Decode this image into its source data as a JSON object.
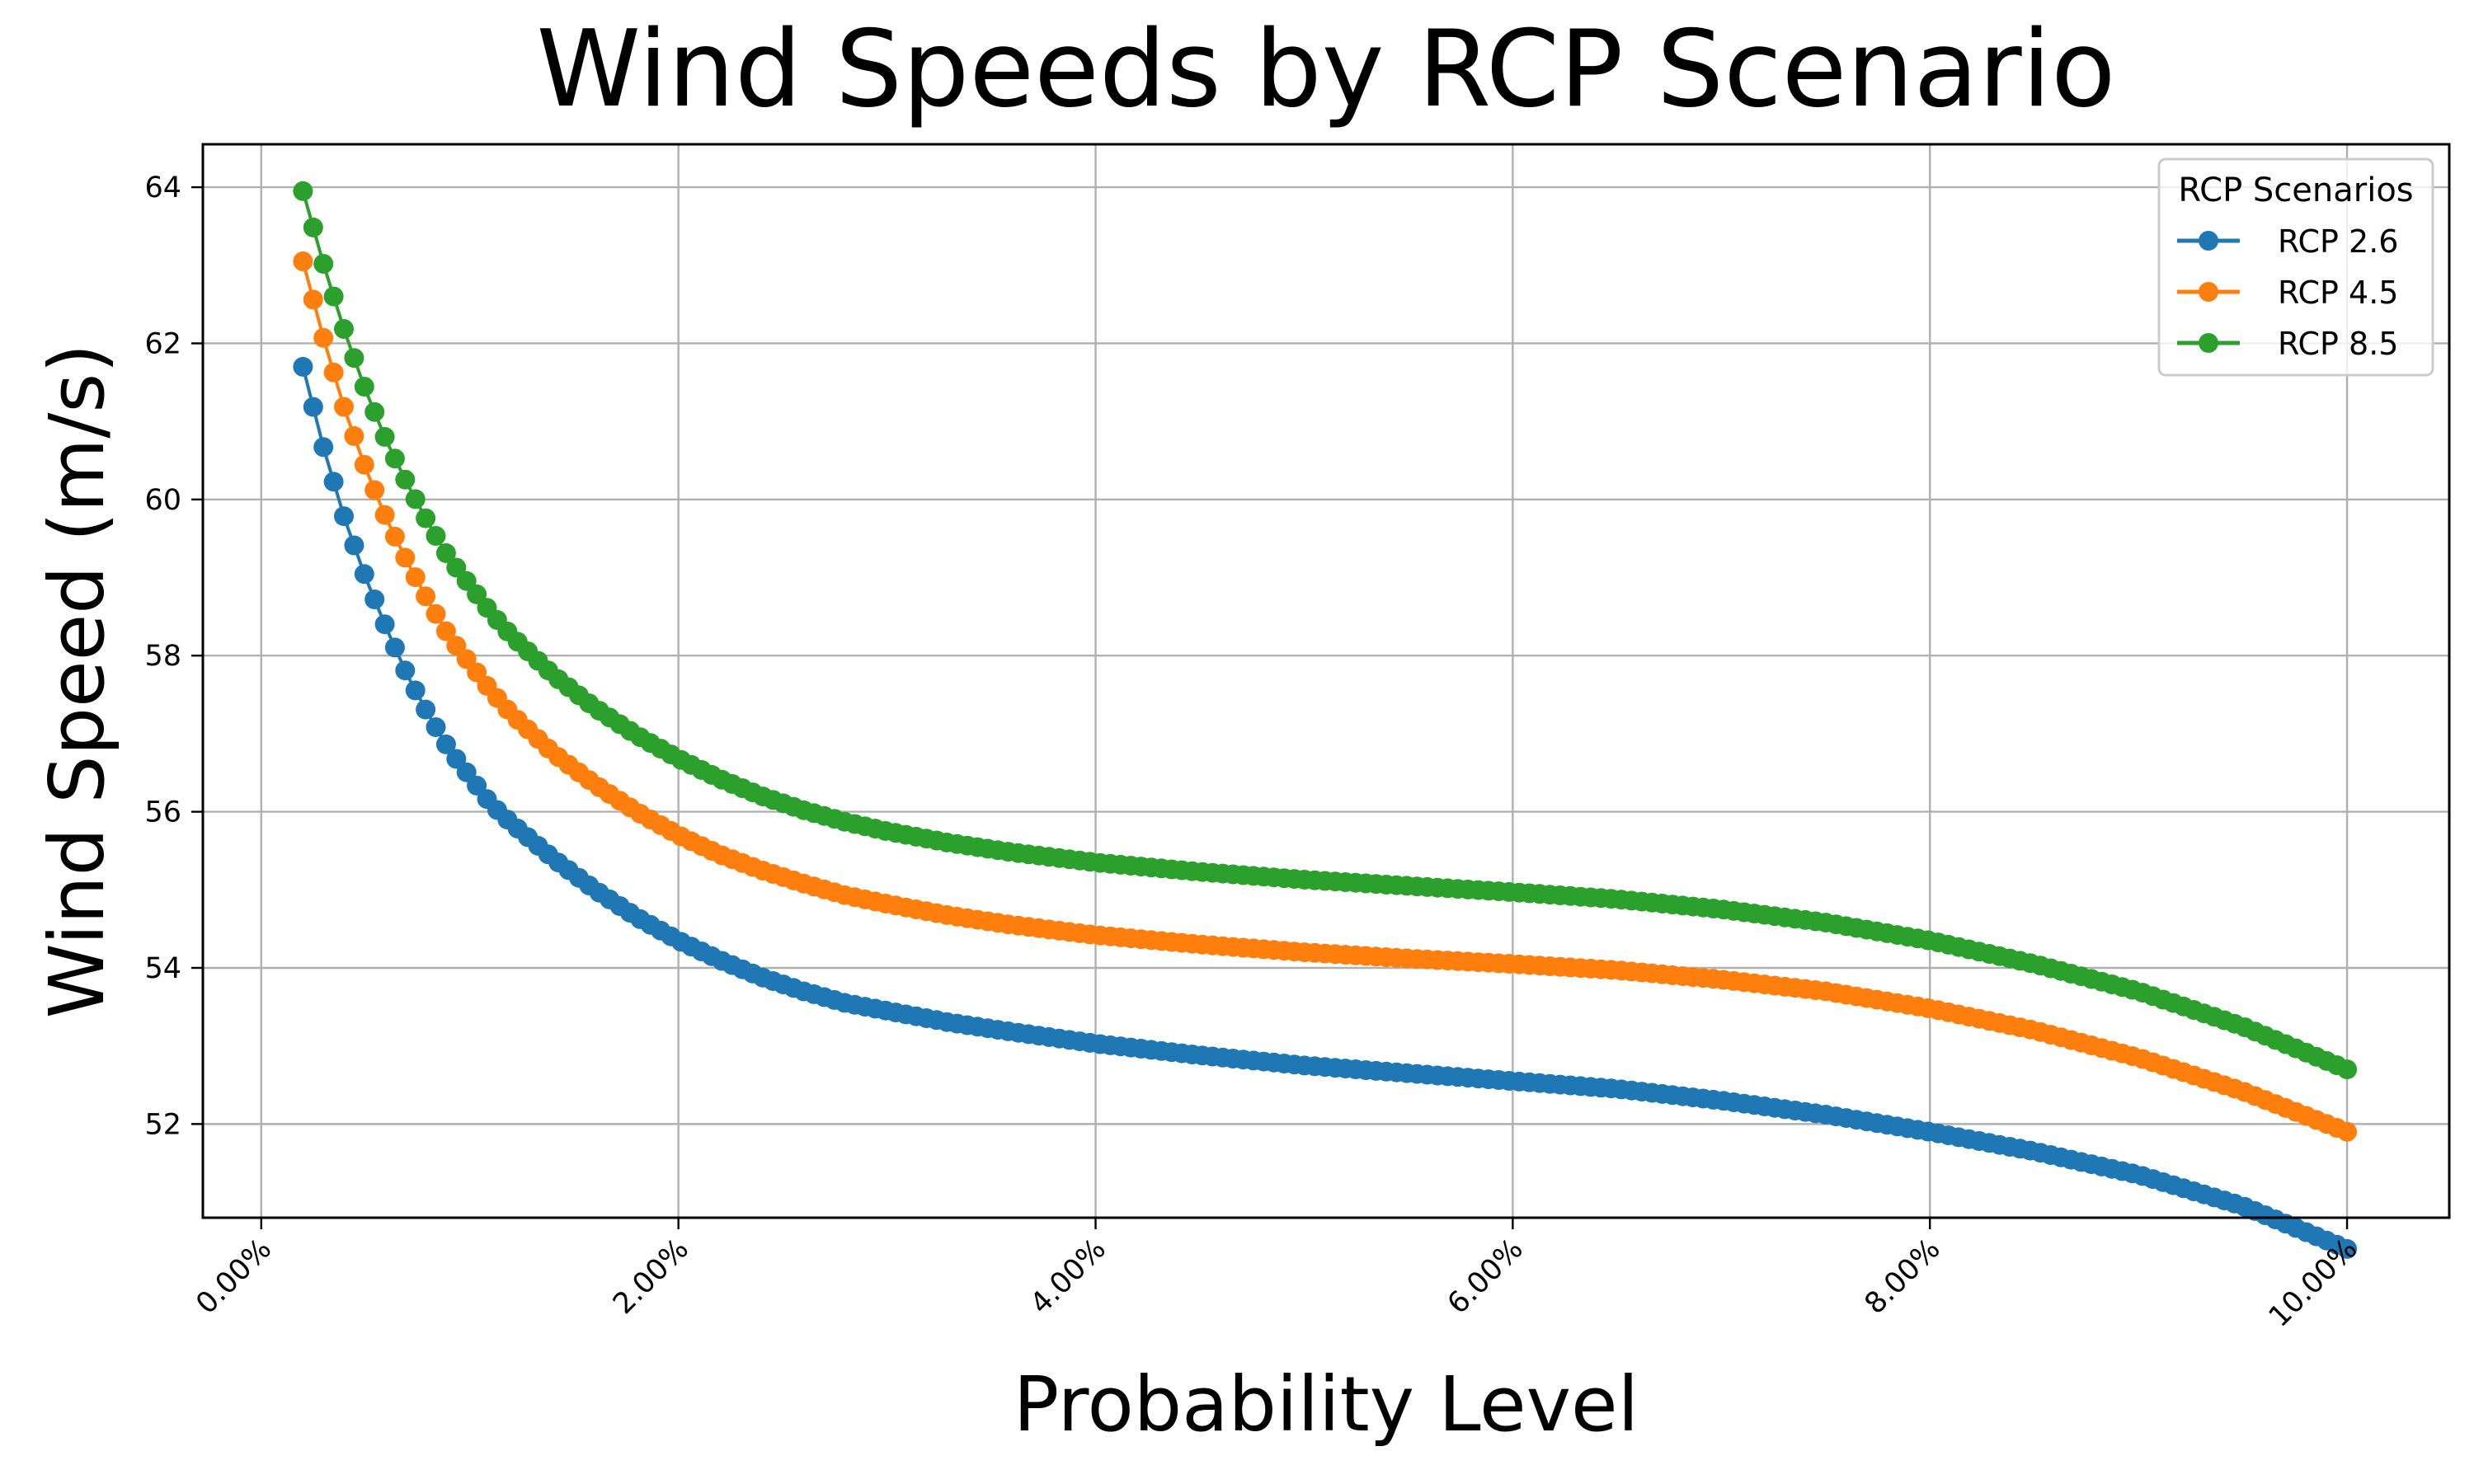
{
  "chart_data": {
    "type": "line",
    "title": "Wind Speeds by RCP Scenario",
    "xlabel": "Probability Level",
    "ylabel": "Wind Speed (m/s)",
    "x_tick_labels": [
      "0.00%",
      "2.00%",
      "4.00%",
      "6.00%",
      "8.00%",
      "10.00%"
    ],
    "x_ticks": [
      0,
      0.02,
      0.04,
      0.06,
      0.08,
      0.1
    ],
    "y_ticks": [
      52,
      54,
      56,
      58,
      60,
      62,
      64
    ],
    "xlim": [
      -0.0028,
      0.1049
    ],
    "ylim": [
      50.8,
      64.55
    ],
    "grid": true,
    "legend": {
      "title": "RCP Scenarios",
      "placement": "top-right"
    },
    "x": [
      0.002,
      0.003,
      0.004,
      0.005,
      0.006,
      0.007,
      0.008,
      0.009,
      0.01,
      0.011,
      0.012,
      0.014,
      0.016,
      0.018,
      0.02,
      0.022,
      0.024,
      0.026,
      0.028,
      0.03,
      0.033,
      0.036,
      0.04,
      0.045,
      0.05,
      0.055,
      0.06,
      0.065,
      0.07,
      0.075,
      0.08,
      0.085,
      0.09,
      0.095,
      0.1
    ],
    "series": [
      {
        "name": "RCP 2.6",
        "color": "#1f77b4",
        "values": [
          61.7,
          60.65,
          59.75,
          59.0,
          58.35,
          57.75,
          57.25,
          56.8,
          56.45,
          56.1,
          55.85,
          55.4,
          55.0,
          54.65,
          54.35,
          54.1,
          53.88,
          53.7,
          53.55,
          53.45,
          53.3,
          53.18,
          53.03,
          52.88,
          52.75,
          52.65,
          52.55,
          52.45,
          52.3,
          52.12,
          51.9,
          51.65,
          51.35,
          50.95,
          50.4
        ]
      },
      {
        "name": "RCP 4.5",
        "color": "#ff7f0e",
        "values": [
          63.05,
          62.05,
          61.15,
          60.4,
          59.75,
          59.2,
          58.7,
          58.25,
          57.9,
          57.55,
          57.25,
          56.75,
          56.35,
          56.0,
          55.7,
          55.45,
          55.25,
          55.08,
          54.93,
          54.82,
          54.67,
          54.55,
          54.42,
          54.3,
          54.2,
          54.12,
          54.05,
          53.97,
          53.85,
          53.7,
          53.48,
          53.2,
          52.85,
          52.42,
          51.9
        ]
      },
      {
        "name": "RCP 8.5",
        "color": "#2ca02c",
        "values": [
          63.95,
          63.0,
          62.15,
          61.4,
          60.75,
          60.2,
          59.7,
          59.25,
          58.9,
          58.55,
          58.25,
          57.75,
          57.33,
          56.98,
          56.68,
          56.42,
          56.2,
          56.02,
          55.87,
          55.75,
          55.6,
          55.48,
          55.35,
          55.23,
          55.13,
          55.05,
          54.97,
          54.88,
          54.75,
          54.58,
          54.35,
          54.05,
          53.7,
          53.25,
          52.7
        ]
      }
    ]
  }
}
